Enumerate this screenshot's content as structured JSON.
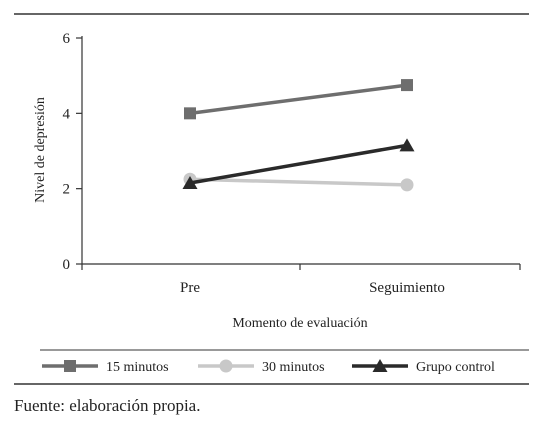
{
  "chart_data": {
    "type": "line",
    "categories": [
      "Pre",
      "Seguimiento"
    ],
    "series": [
      {
        "name": "15 minutos",
        "values": [
          4.0,
          4.75
        ],
        "color": "#6e6e6e",
        "marker": "square"
      },
      {
        "name": "30 minutos",
        "values": [
          2.25,
          2.1
        ],
        "color": "#c8c8c8",
        "marker": "circle"
      },
      {
        "name": "Grupo control",
        "values": [
          2.15,
          3.15
        ],
        "color": "#2a2a2a",
        "marker": "triangle"
      }
    ],
    "xlabel": "Momento de evaluación",
    "ylabel": "Nivel de depresión",
    "ylim": [
      0,
      6
    ],
    "yticks": [
      0,
      2,
      4,
      6
    ],
    "grid": false,
    "legend_position": "bottom"
  },
  "source_note": "Fuente: elaboración propia."
}
